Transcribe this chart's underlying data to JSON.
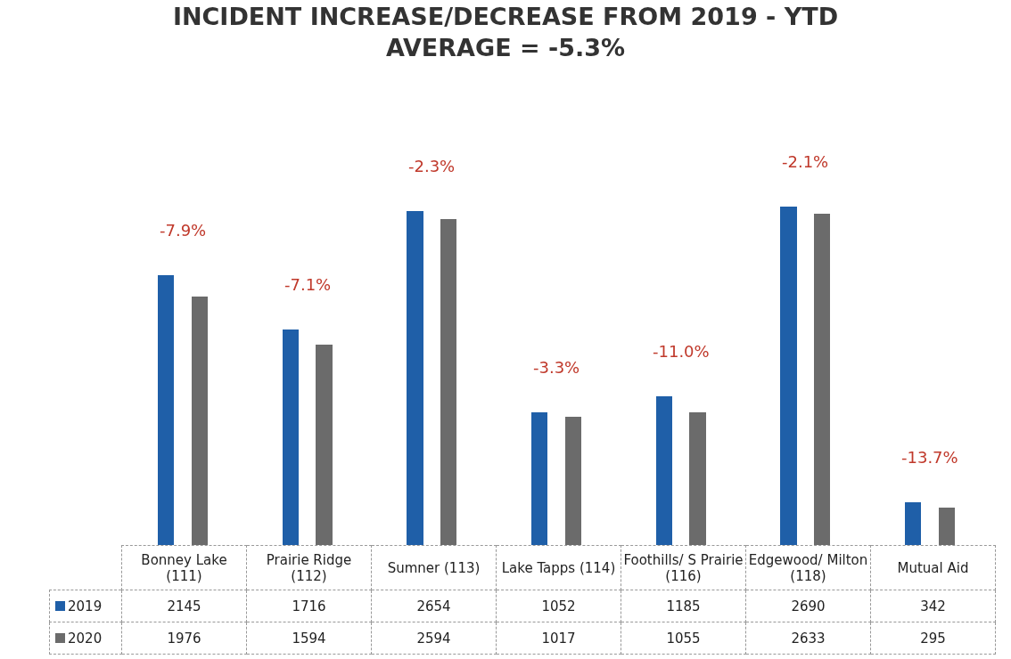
{
  "chart_data": {
    "type": "bar",
    "title": "INCIDENT INCREASE/DECREASE FROM 2019 - YTD",
    "subtitle": "AVERAGE = -5.3%",
    "categories": [
      "Bonney Lake (111)",
      "Prairie Ridge (112)",
      "Sumner (113)",
      "Lake Tapps (114)",
      "Foothills/ S Prairie (116)",
      "Edgewood/ Milton (118)",
      "Mutual Aid"
    ],
    "series": [
      {
        "name": "2019",
        "color": "#1f5fa8",
        "values": [
          2145,
          1716,
          2654,
          1052,
          1185,
          2690,
          342
        ]
      },
      {
        "name": "2020",
        "color": "#6b6b6b",
        "values": [
          1976,
          1594,
          2594,
          1017,
          1055,
          2633,
          295
        ]
      }
    ],
    "data_labels": true,
    "legend": "bottom left",
    "annotations": [
      "-7.9%",
      "-7.1%",
      "-2.3%",
      "-3.3%",
      "-11.0%",
      "-2.1%",
      "-13.7%"
    ]
  }
}
